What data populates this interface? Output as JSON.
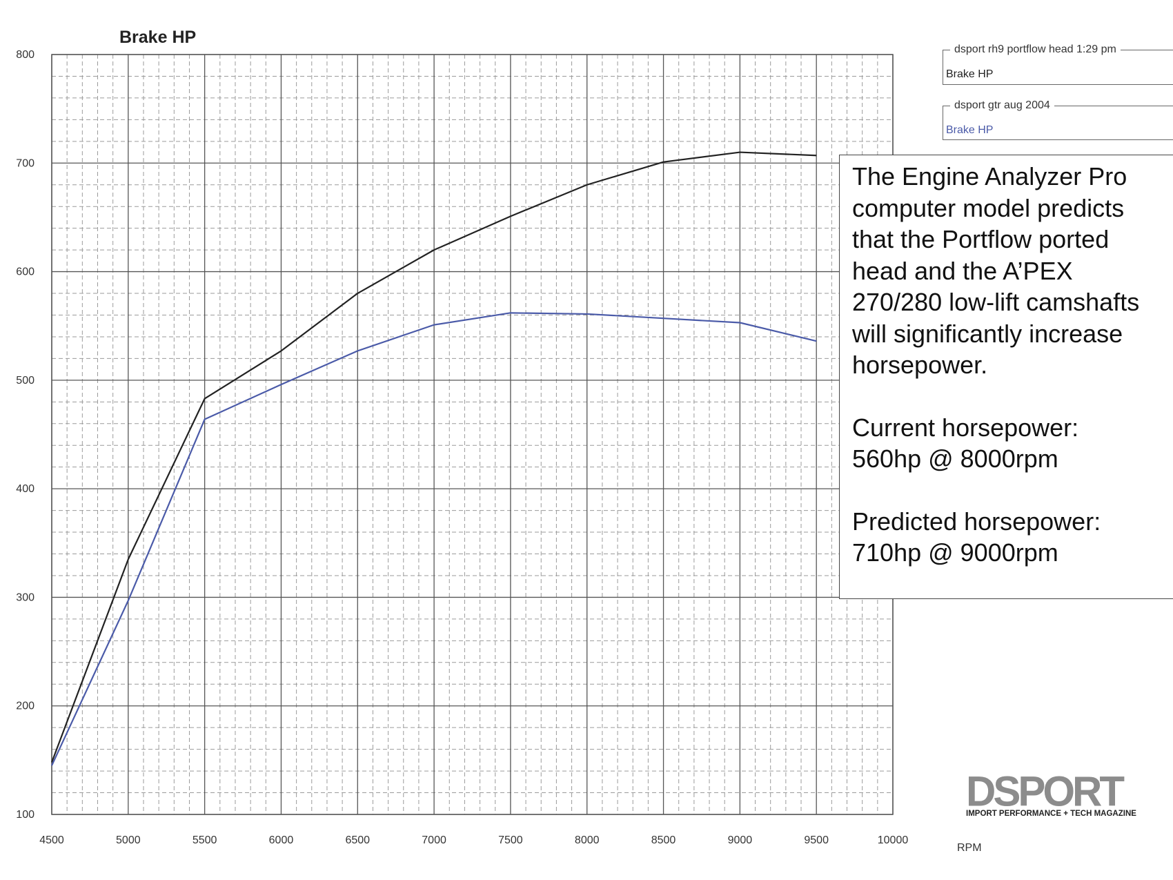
{
  "chart_data": {
    "type": "line",
    "title": "Brake HP",
    "xlabel": "RPM",
    "ylabel": "",
    "xlim": [
      4500,
      10000
    ],
    "ylim": [
      100,
      800
    ],
    "x_ticks": [
      4500,
      5000,
      5500,
      6000,
      6500,
      7000,
      7500,
      8000,
      8500,
      9000,
      9500,
      10000
    ],
    "y_ticks": [
      100,
      200,
      300,
      400,
      500,
      600,
      700,
      800
    ],
    "grid": true,
    "x": [
      4500,
      5000,
      5500,
      6000,
      6500,
      7000,
      7500,
      8000,
      8500,
      9000,
      9500
    ],
    "series": [
      {
        "name": "dsport rh9 portflow head 1:29 pm",
        "subname": "Brake HP",
        "color": "#222222",
        "values": [
          148,
          335,
          483,
          527,
          580,
          620,
          651,
          680,
          701,
          710,
          707
        ]
      },
      {
        "name": "dsport gtr aug 2004",
        "subname": "Brake HP",
        "color": "#4a5aa8",
        "values": [
          145,
          297,
          464,
          496,
          527,
          551,
          562,
          561,
          557,
          553,
          536
        ]
      }
    ],
    "legend_position": "top-right"
  },
  "annotation": {
    "lines": [
      "The Engine Analyzer Pro",
      "computer model predicts",
      "that the Portflow ported",
      "head and the A’PEX",
      "270/280 low-lift camshafts",
      "will significantly increase",
      "horsepower."
    ],
    "current_label": "Current horsepower:",
    "current_value": "560hp @ 8000rpm",
    "predicted_label": "Predicted horsepower:",
    "predicted_value": "710hp @ 9000rpm"
  },
  "logo": {
    "word": "DSPORT",
    "tagline": "IMPORT PERFORMANCE + TECH MAGAZINE"
  }
}
